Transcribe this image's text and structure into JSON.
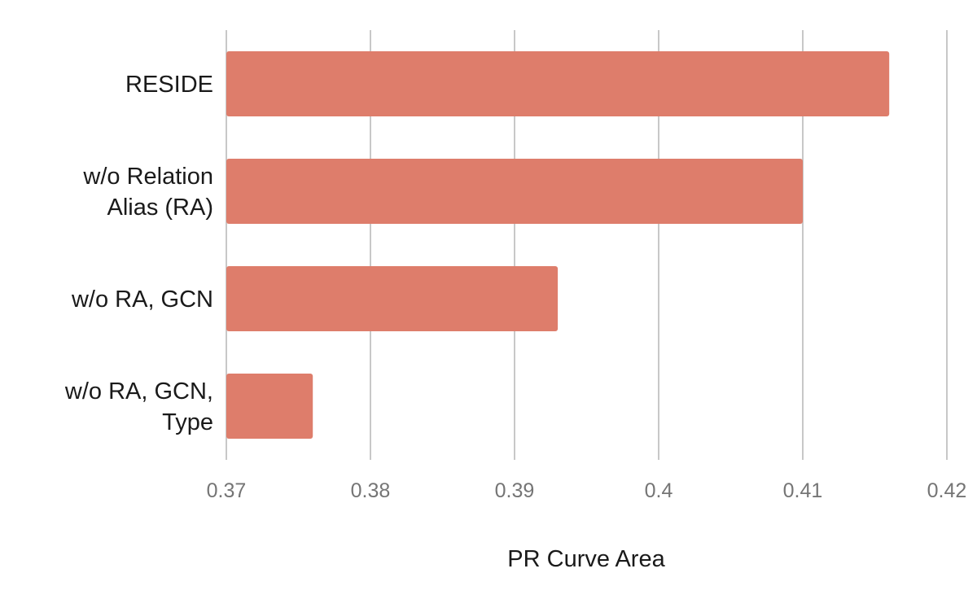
{
  "chart_data": {
    "type": "bar",
    "orientation": "horizontal",
    "categories": [
      [
        "RESIDE"
      ],
      [
        "w/o Relation",
        "Alias (RA)"
      ],
      [
        "w/o RA, GCN"
      ],
      [
        "w/o RA, GCN,",
        "Type"
      ]
    ],
    "values": [
      0.416,
      0.41,
      0.393,
      0.376
    ],
    "xlabel": "PR Curve Area",
    "ylabel": "",
    "xlim": [
      0.37,
      0.42
    ],
    "xticks": [
      "0.37",
      "0.38",
      "0.39",
      "0.4",
      "0.41",
      "0.42"
    ],
    "grid": true,
    "legend": "none",
    "bar_color": "#de7d6b",
    "grid_color": "#c8c8c8",
    "tick_label_color": "#757575",
    "category_label_color": "#1a1a1a"
  }
}
